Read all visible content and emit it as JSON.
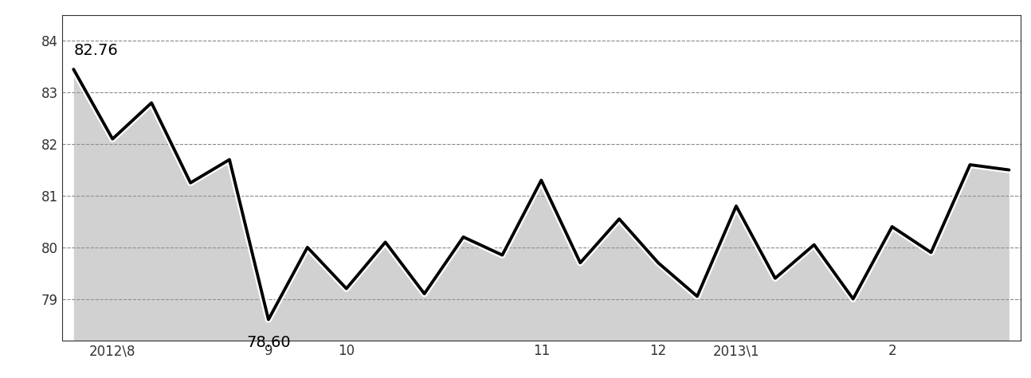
{
  "chart_data": {
    "type": "line",
    "categories": [
      null,
      "2012\\8",
      null,
      null,
      null,
      "9",
      null,
      "10",
      null,
      null,
      null,
      null,
      "11",
      null,
      null,
      "12",
      null,
      "2013\\1",
      null,
      null,
      null,
      "2",
      null,
      null,
      null
    ],
    "values": [
      83.45,
      82.1,
      82.8,
      81.25,
      81.7,
      78.6,
      80.0,
      79.2,
      80.1,
      79.1,
      80.2,
      79.85,
      81.3,
      79.7,
      80.55,
      79.7,
      79.05,
      80.8,
      79.4,
      80.05,
      79.0,
      80.4,
      79.9,
      81.6,
      81.5
    ],
    "annotations": [
      "82.76",
      "78.60"
    ],
    "color": "#000000",
    "ylim": [
      78.2,
      84.5
    ],
    "yticks": [
      79,
      80,
      81,
      82,
      83,
      84
    ],
    "grid": true
  }
}
